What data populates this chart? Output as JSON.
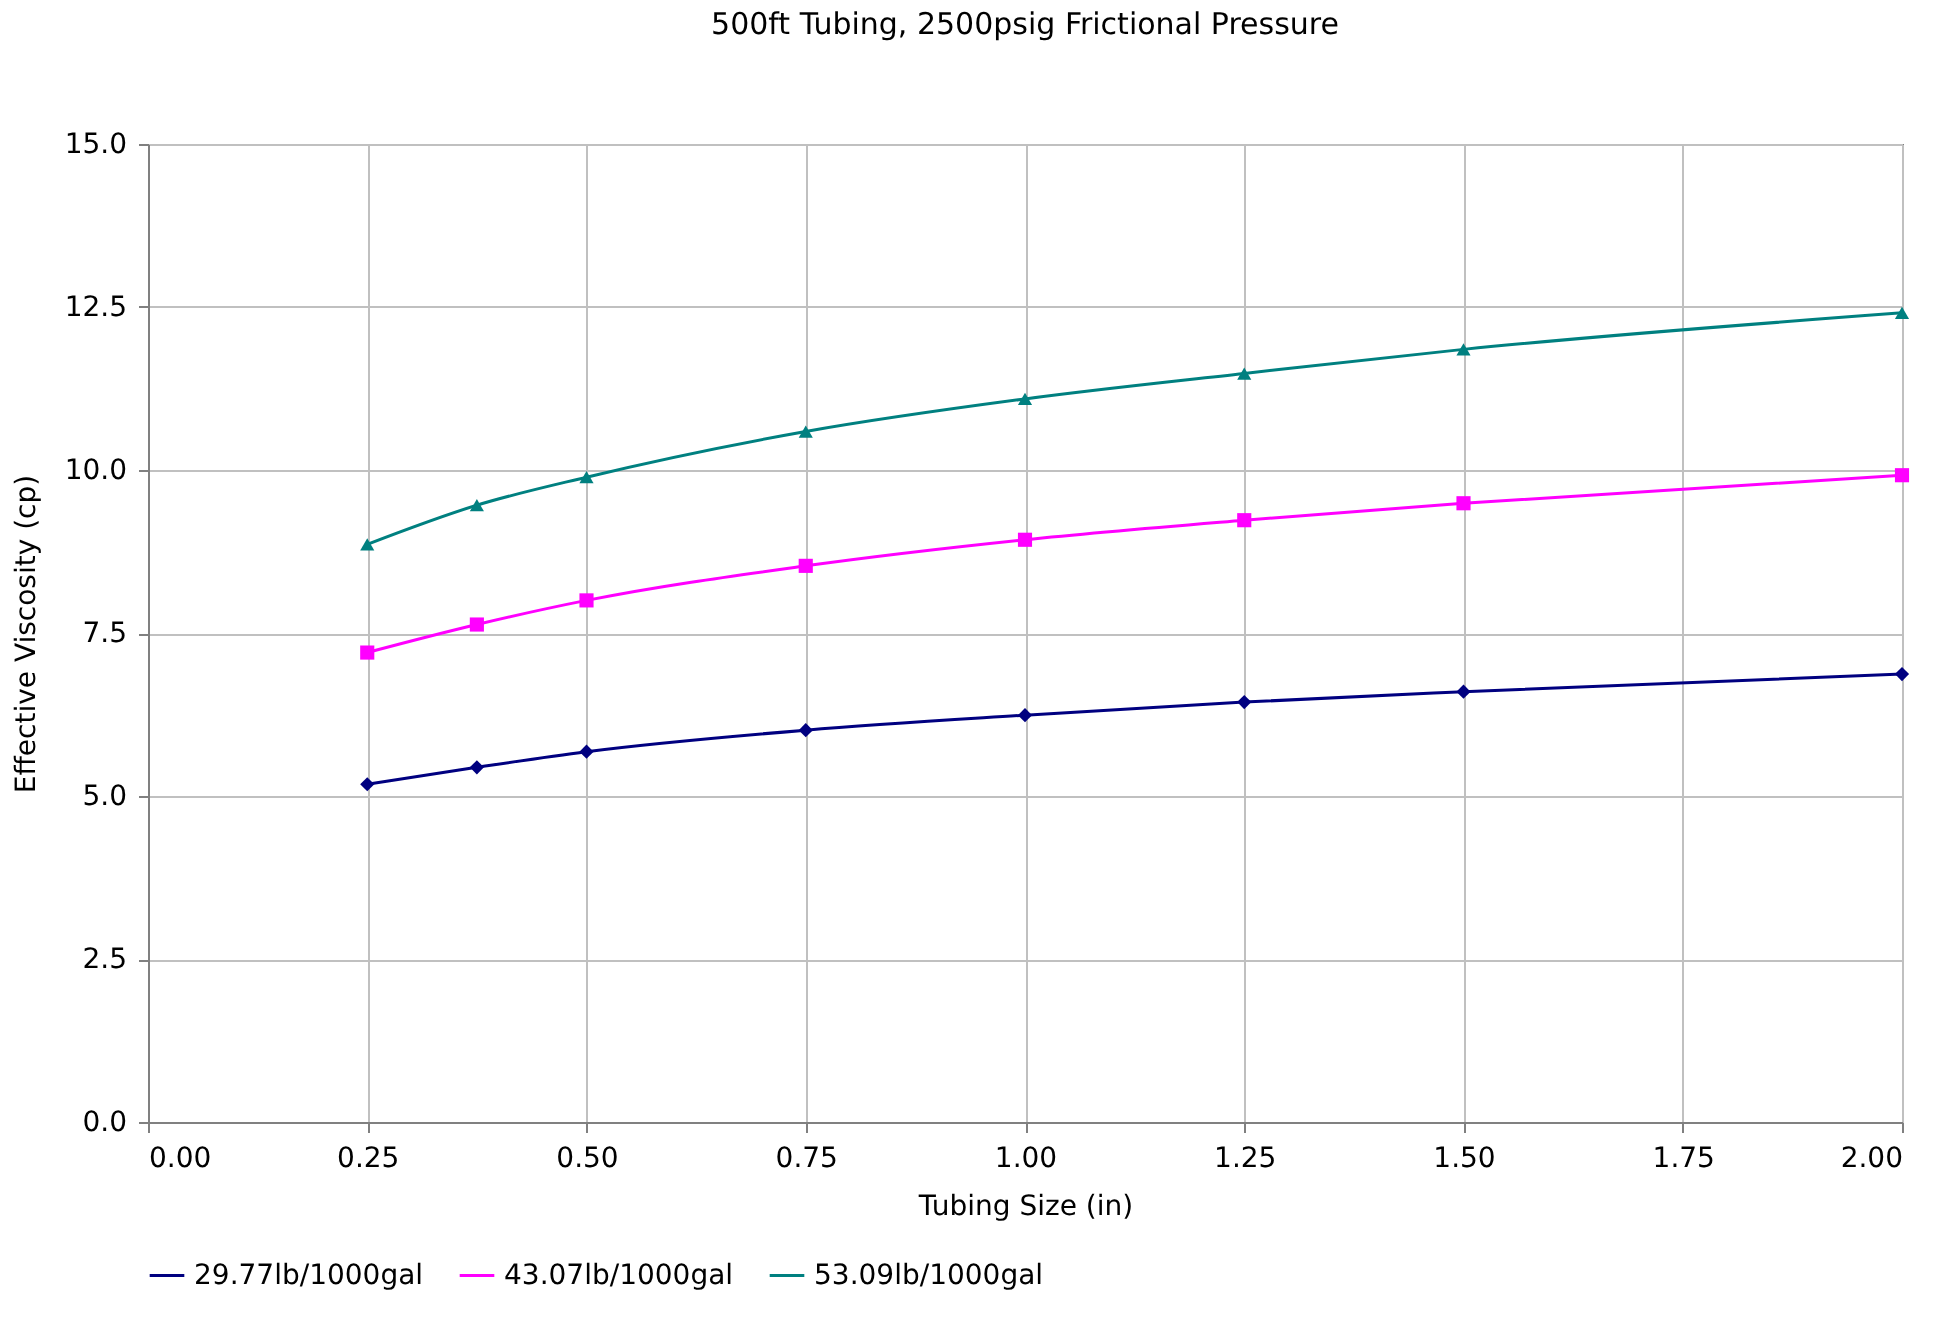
{
  "chart_data": {
    "type": "line",
    "title": "500ft Tubing, 2500psig Frictional Pressure",
    "xlabel": "Tubing Size (in)",
    "ylabel": "Effective Viscosity (cp)",
    "x": [
      0.25,
      0.375,
      0.5,
      0.75,
      1.0,
      1.25,
      1.5,
      2.0
    ],
    "series": [
      {
        "name": "29.77lb/1000gal",
        "color": "#000080",
        "marker": "diamond",
        "values": [
          5.18,
          5.44,
          5.68,
          6.01,
          6.24,
          6.44,
          6.6,
          6.87
        ]
      },
      {
        "name": "43.07lb/1000gal",
        "color": "#ff00ff",
        "marker": "square",
        "values": [
          7.2,
          7.63,
          8.0,
          8.53,
          8.93,
          9.23,
          9.49,
          9.92
        ]
      },
      {
        "name": "53.09lb/1000gal",
        "color": "#008080",
        "marker": "triangle",
        "values": [
          8.86,
          9.46,
          9.89,
          10.59,
          11.09,
          11.48,
          11.85,
          12.41
        ]
      }
    ],
    "xlim": [
      0,
      2
    ],
    "xticks": [
      {
        "value": 0,
        "label": "0.00"
      },
      {
        "value": 0.25,
        "label": "0.25"
      },
      {
        "value": 0.5,
        "label": "0.50"
      },
      {
        "value": 0.75,
        "label": "0.75"
      },
      {
        "value": 1,
        "label": "1.00"
      },
      {
        "value": 1.25,
        "label": "1.25"
      },
      {
        "value": 1.5,
        "label": "1.50"
      },
      {
        "value": 1.75,
        "label": "1.75"
      },
      {
        "value": 2,
        "label": "2.00"
      }
    ],
    "ylim": [
      0,
      15
    ],
    "yticks": [
      {
        "value": 0,
        "label": "0.0"
      },
      {
        "value": 2.5,
        "label": "2.5"
      },
      {
        "value": 5,
        "label": "5.0"
      },
      {
        "value": 7.5,
        "label": "7.5"
      },
      {
        "value": 10,
        "label": "10.0"
      },
      {
        "value": 12.5,
        "label": "12.5"
      },
      {
        "value": 15,
        "label": "15.0"
      }
    ],
    "grid": true,
    "legend": "bottom",
    "line_style": "solid"
  }
}
